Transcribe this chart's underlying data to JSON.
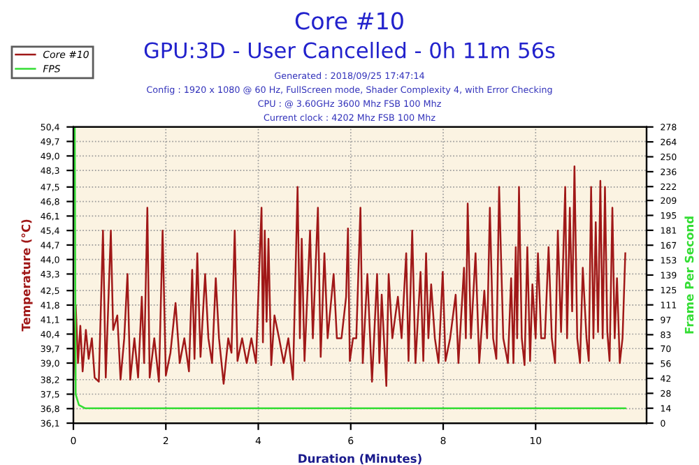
{
  "chart_data": {
    "type": "line",
    "title": "Core #10",
    "subtitle": "GPU:3D - User Cancelled - 0h 11m 56s",
    "annotations": [
      "Generated : 2018/09/25 17:47:14",
      "Config : 1920 x 1080 @ 60 Hz, FullScreen mode, Shader Complexity 4, with Error Checking",
      "CPU : @ 3.60GHz 3600 Mhz FSB 100 Mhz",
      "Current clock : 4202 Mhz FSB 100 Mhz"
    ],
    "xlabel": "Duration (Minutes)",
    "ylabel": "Temperature (°C)",
    "y2label": "Frame Per Second",
    "xlim": [
      0,
      12.4
    ],
    "xticks": [
      0,
      2,
      4,
      6,
      8,
      10
    ],
    "ylim": [
      36.1,
      50.4
    ],
    "yticks": [
      {
        "value": 36.1,
        "label": "36,1"
      },
      {
        "value": 36.8,
        "label": "36,8"
      },
      {
        "value": 37.5,
        "label": "37,5"
      },
      {
        "value": 38.2,
        "label": "38,2"
      },
      {
        "value": 39.0,
        "label": "39,0"
      },
      {
        "value": 39.7,
        "label": "39,7"
      },
      {
        "value": 40.4,
        "label": "40,4"
      },
      {
        "value": 41.1,
        "label": "41,1"
      },
      {
        "value": 41.8,
        "label": "41,8"
      },
      {
        "value": 42.5,
        "label": "42,5"
      },
      {
        "value": 43.3,
        "label": "43,3"
      },
      {
        "value": 44.0,
        "label": "44,0"
      },
      {
        "value": 44.7,
        "label": "44,7"
      },
      {
        "value": 45.4,
        "label": "45,4"
      },
      {
        "value": 46.1,
        "label": "46,1"
      },
      {
        "value": 46.8,
        "label": "46,8"
      },
      {
        "value": 47.5,
        "label": "47,5"
      },
      {
        "value": 48.3,
        "label": "48,3"
      },
      {
        "value": 49.0,
        "label": "49,0"
      },
      {
        "value": 49.7,
        "label": "49,7"
      },
      {
        "value": 50.4,
        "label": "50,4"
      }
    ],
    "y2lim": [
      0,
      278
    ],
    "y2ticks": [
      0,
      14,
      28,
      42,
      56,
      70,
      83,
      97,
      111,
      125,
      139,
      153,
      167,
      181,
      195,
      209,
      222,
      236,
      250,
      264,
      278
    ],
    "grid": true,
    "legend": "top left",
    "line_style": "solid",
    "marker": "none",
    "series": [
      {
        "name": "Core #10",
        "color": "#a01818",
        "x": [
          0.0,
          0.05,
          0.1,
          0.15,
          0.2,
          0.27,
          0.33,
          0.4,
          0.46,
          0.55,
          0.64,
          0.7,
          0.81,
          0.86,
          0.95,
          1.02,
          1.1,
          1.17,
          1.23,
          1.32,
          1.4,
          1.48,
          1.53,
          1.6,
          1.65,
          1.75,
          1.85,
          1.93,
          2.0,
          2.1,
          2.21,
          2.3,
          2.4,
          2.5,
          2.57,
          2.62,
          2.68,
          2.75,
          2.85,
          2.92,
          3.0,
          3.08,
          3.15,
          3.25,
          3.35,
          3.42,
          3.49,
          3.55,
          3.65,
          3.75,
          3.85,
          3.95,
          4.02,
          4.07,
          4.1,
          4.14,
          4.18,
          4.22,
          4.28,
          4.35,
          4.45,
          4.55,
          4.65,
          4.75,
          4.85,
          4.9,
          4.94,
          5.0,
          5.12,
          5.18,
          5.29,
          5.35,
          5.43,
          5.5,
          5.63,
          5.7,
          5.8,
          5.9,
          5.94,
          5.98,
          6.05,
          6.12,
          6.21,
          6.26,
          6.36,
          6.46,
          6.57,
          6.62,
          6.67,
          6.77,
          6.82,
          6.9,
          7.02,
          7.1,
          7.2,
          7.25,
          7.33,
          7.4,
          7.51,
          7.57,
          7.63,
          7.68,
          7.74,
          7.82,
          7.9,
          7.99,
          8.05,
          8.15,
          8.27,
          8.33,
          8.45,
          8.49,
          8.53,
          8.6,
          8.7,
          8.78,
          8.89,
          8.95,
          9.01,
          9.08,
          9.15,
          9.21,
          9.3,
          9.4,
          9.47,
          9.52,
          9.57,
          9.6,
          9.64,
          9.7,
          9.76,
          9.82,
          9.88,
          9.93,
          10.0,
          10.05,
          10.12,
          10.2,
          10.28,
          10.35,
          10.42,
          10.48,
          10.55,
          10.64,
          10.68,
          10.74,
          10.79,
          10.84,
          10.9,
          10.96,
          11.02,
          11.1,
          11.15,
          11.2,
          11.25,
          11.3,
          11.35,
          11.4,
          11.45,
          11.5,
          11.55,
          11.6,
          11.66,
          11.71,
          11.76,
          11.82,
          11.88,
          11.94
        ],
        "values": [
          38.2,
          41.8,
          39.0,
          40.8,
          38.6,
          40.6,
          39.2,
          40.2,
          38.3,
          38.1,
          45.4,
          38.3,
          45.4,
          40.6,
          41.3,
          38.2,
          40.2,
          43.3,
          38.2,
          40.2,
          38.3,
          42.2,
          39.0,
          46.5,
          38.3,
          40.2,
          38.1,
          45.4,
          38.4,
          39.5,
          41.9,
          39.0,
          40.2,
          38.6,
          43.5,
          39.2,
          44.3,
          39.3,
          43.3,
          40.2,
          39.0,
          43.1,
          40.2,
          38.0,
          40.2,
          39.5,
          45.4,
          39.1,
          40.2,
          39.0,
          40.2,
          39.0,
          43.5,
          46.5,
          40.0,
          45.4,
          41.0,
          45.0,
          38.9,
          41.3,
          40.2,
          39.0,
          40.2,
          38.2,
          47.5,
          40.2,
          45.0,
          39.1,
          45.4,
          40.2,
          46.5,
          39.3,
          44.3,
          40.2,
          43.3,
          40.2,
          40.2,
          42.2,
          45.5,
          39.1,
          40.2,
          40.2,
          46.5,
          39.0,
          43.3,
          38.1,
          43.3,
          39.0,
          42.3,
          37.9,
          43.3,
          40.2,
          42.2,
          40.2,
          44.3,
          39.1,
          45.4,
          39.0,
          43.4,
          39.1,
          44.3,
          40.2,
          42.8,
          40.2,
          39.0,
          43.4,
          39.1,
          40.2,
          42.3,
          39.0,
          43.6,
          40.2,
          46.7,
          40.2,
          44.3,
          39.0,
          42.5,
          40.2,
          46.5,
          40.2,
          39.2,
          47.5,
          40.2,
          39.0,
          43.1,
          39.0,
          44.6,
          40.2,
          47.5,
          40.2,
          38.9,
          44.6,
          39.1,
          42.8,
          40.2,
          44.3,
          40.2,
          40.2,
          44.6,
          40.2,
          39.0,
          45.4,
          40.5,
          47.5,
          40.2,
          46.5,
          41.5,
          48.5,
          40.2,
          39.0,
          43.6,
          40.2,
          39.1,
          47.5,
          40.2,
          45.8,
          40.5,
          47.8,
          40.2,
          47.5,
          40.5,
          39.1,
          46.5,
          40.2,
          43.1,
          39.0,
          40.2,
          44.3
        ]
      },
      {
        "name": "FPS",
        "color": "#33dd33",
        "axis": "y2",
        "x": [
          0.03,
          0.05,
          0.12,
          0.25,
          11.94
        ],
        "values": [
          278,
          27,
          17,
          14,
          14
        ]
      }
    ]
  }
}
